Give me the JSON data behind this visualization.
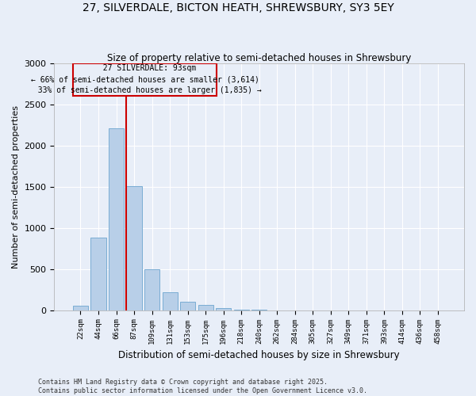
{
  "title": "27, SILVERDALE, BICTON HEATH, SHREWSBURY, SY3 5EY",
  "subtitle": "Size of property relative to semi-detached houses in Shrewsbury",
  "xlabel": "Distribution of semi-detached houses by size in Shrewsbury",
  "ylabel": "Number of semi-detached properties",
  "bar_color": "#b8cfe8",
  "bar_edge_color": "#7aadd4",
  "background_color": "#e8eef8",
  "grid_color": "#ffffff",
  "annotation_line_color": "#cc0000",
  "annotation_box_color": "#cc0000",
  "property_label": "27 SILVERDALE: 93sqm",
  "pct_smaller": 66,
  "pct_larger": 33,
  "count_smaller": 3614,
  "count_larger": 1835,
  "bin_labels": [
    "22sqm",
    "44sqm",
    "66sqm",
    "87sqm",
    "109sqm",
    "131sqm",
    "153sqm",
    "175sqm",
    "196sqm",
    "218sqm",
    "240sqm",
    "262sqm",
    "284sqm",
    "305sqm",
    "327sqm",
    "349sqm",
    "371sqm",
    "393sqm",
    "414sqm",
    "436sqm",
    "458sqm"
  ],
  "bin_values": [
    55,
    880,
    2210,
    1510,
    500,
    215,
    100,
    60,
    30,
    5,
    5,
    0,
    0,
    0,
    0,
    0,
    0,
    0,
    0,
    0,
    0
  ],
  "ylim": [
    0,
    3000
  ],
  "yticks": [
    0,
    500,
    1000,
    1500,
    2000,
    2500,
    3000
  ],
  "red_line_bin": 3,
  "footer": "Contains HM Land Registry data © Crown copyright and database right 2025.\nContains public sector information licensed under the Open Government Licence v3.0.",
  "figsize": [
    6.0,
    5.0
  ],
  "dpi": 100
}
